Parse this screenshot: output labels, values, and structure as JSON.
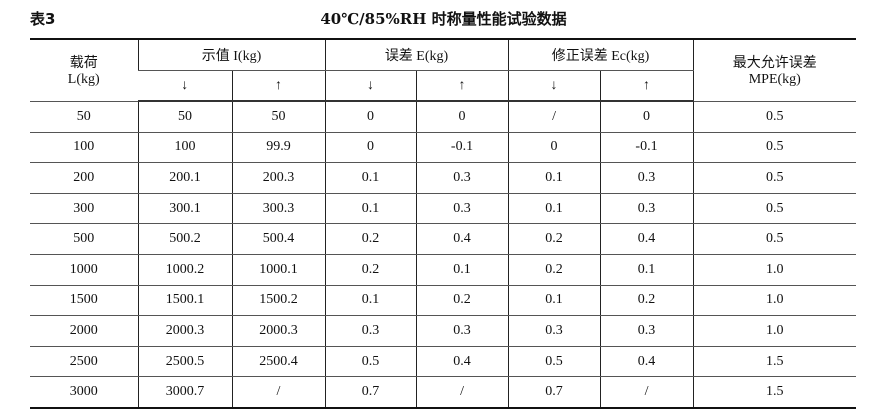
{
  "table_label": "表3",
  "title": "40℃/85%RH 时称量性能试验数据",
  "headers": {
    "load": "载荷",
    "load_unit": "L(kg)",
    "indication": "示值 I(kg)",
    "error": "误差 E(kg)",
    "corrected_error": "修正误差 Ec(kg)",
    "mpe": "最大允许误差",
    "mpe_unit": "MPE(kg)",
    "down": "↓",
    "up": "↑"
  },
  "rows": [
    [
      "50",
      "50",
      "50",
      "0",
      "0",
      "/",
      "0",
      "0.5"
    ],
    [
      "100",
      "100",
      "99.9",
      "0",
      "-0.1",
      "0",
      "-0.1",
      "0.5"
    ],
    [
      "200",
      "200.1",
      "200.3",
      "0.1",
      "0.3",
      "0.1",
      "0.3",
      "0.5"
    ],
    [
      "300",
      "300.1",
      "300.3",
      "0.1",
      "0.3",
      "0.1",
      "0.3",
      "0.5"
    ],
    [
      "500",
      "500.2",
      "500.4",
      "0.2",
      "0.4",
      "0.2",
      "0.4",
      "0.5"
    ],
    [
      "1000",
      "1000.2",
      "1000.1",
      "0.2",
      "0.1",
      "0.2",
      "0.1",
      "1.0"
    ],
    [
      "1500",
      "1500.1",
      "1500.2",
      "0.1",
      "0.2",
      "0.1",
      "0.2",
      "1.0"
    ],
    [
      "2000",
      "2000.3",
      "2000.3",
      "0.3",
      "0.3",
      "0.3",
      "0.3",
      "1.0"
    ],
    [
      "2500",
      "2500.5",
      "2500.4",
      "0.5",
      "0.4",
      "0.5",
      "0.4",
      "1.5"
    ],
    [
      "3000",
      "3000.7",
      "/",
      "0.7",
      "/",
      "0.7",
      "/",
      "1.5"
    ]
  ]
}
